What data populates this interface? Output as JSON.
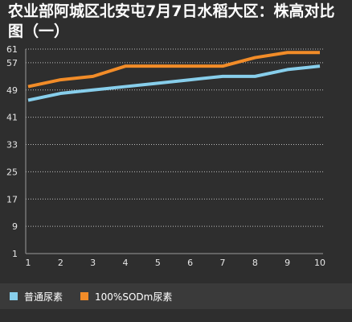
{
  "title": "农业部阿城区北安屯7月7日水稻大区：株高对比图（一）",
  "colors": {
    "background": "#2e2e2e",
    "legend_bg": "#3a3a3a",
    "grid": "#bdbdbd",
    "axis_text": "#e6e6e6",
    "series_colors": [
      "#87ceeb",
      "#f28c28"
    ]
  },
  "chart_data": {
    "type": "line",
    "title": "农业部阿城区北安屯7月7日水稻大区：株高对比图（一）",
    "xlabel": "",
    "ylabel": "",
    "x": [
      1,
      2,
      3,
      4,
      5,
      6,
      7,
      8,
      9,
      10
    ],
    "x_tick_labels": [
      "1",
      "2",
      "3",
      "4",
      "5",
      "6",
      "7",
      "8",
      "9",
      "10"
    ],
    "y_ticks": [
      1,
      9,
      17,
      25,
      33,
      41,
      49,
      57,
      61
    ],
    "y_tick_labels": [
      "1",
      "9",
      "17",
      "25",
      "33",
      "41",
      "49",
      "57",
      "61"
    ],
    "ylim": [
      1,
      61
    ],
    "grid": true,
    "legend_position": "bottom",
    "series": [
      {
        "name": "普通尿素",
        "color": "#87ceeb",
        "values": [
          46,
          48,
          49,
          50,
          51,
          52,
          53,
          53,
          55,
          56
        ]
      },
      {
        "name": "100%SODm尿素",
        "color": "#f28c28",
        "values": [
          50,
          52,
          53,
          56,
          56,
          56,
          56,
          58.5,
          60,
          60
        ]
      }
    ]
  }
}
